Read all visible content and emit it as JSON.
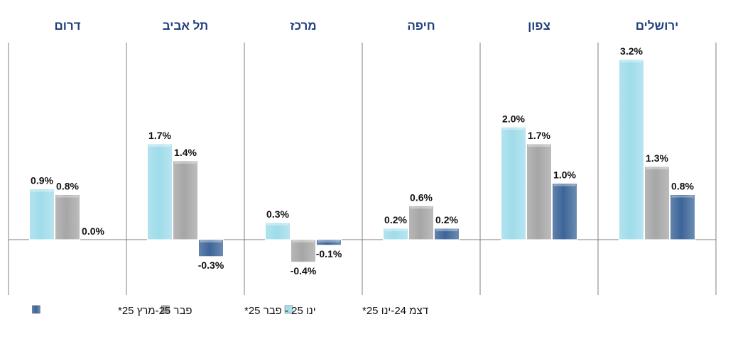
{
  "chart_data": {
    "type": "bar",
    "categories": [
      "ירושלים",
      "צפון",
      "חיפה",
      "מרכז",
      "תל אביב",
      "דרום"
    ],
    "series": [
      {
        "name": "דצמ 24-ינו 25*",
        "values": [
          3.2,
          2.0,
          0.2,
          0.3,
          1.7,
          0.9
        ],
        "labels": [
          "3.2%",
          "2.0%",
          "0.2%",
          "0.3%",
          "1.7%",
          "0.9%"
        ],
        "color": "#9fdcea"
      },
      {
        "name": "ינו 25 - פבר 25*",
        "values": [
          1.3,
          1.7,
          0.6,
          -0.4,
          1.4,
          0.8
        ],
        "labels": [
          "1.3%",
          "1.7%",
          "0.6%",
          "-0.4%",
          "1.4%",
          "0.8%"
        ],
        "color": "#a6a6a6"
      },
      {
        "name": "פבר 25-מרץ 25*",
        "values": [
          0.8,
          1.0,
          0.2,
          -0.1,
          -0.3,
          0.0
        ],
        "labels": [
          "0.8%",
          "1.0%",
          "0.2%",
          "-0.1%",
          "-0.3%",
          "0.0%"
        ],
        "color": "#3c6598"
      }
    ],
    "ylim": [
      -0.95,
      3.5
    ],
    "grid": false,
    "legend_position": "bottom",
    "category_order": "right-to-left"
  }
}
